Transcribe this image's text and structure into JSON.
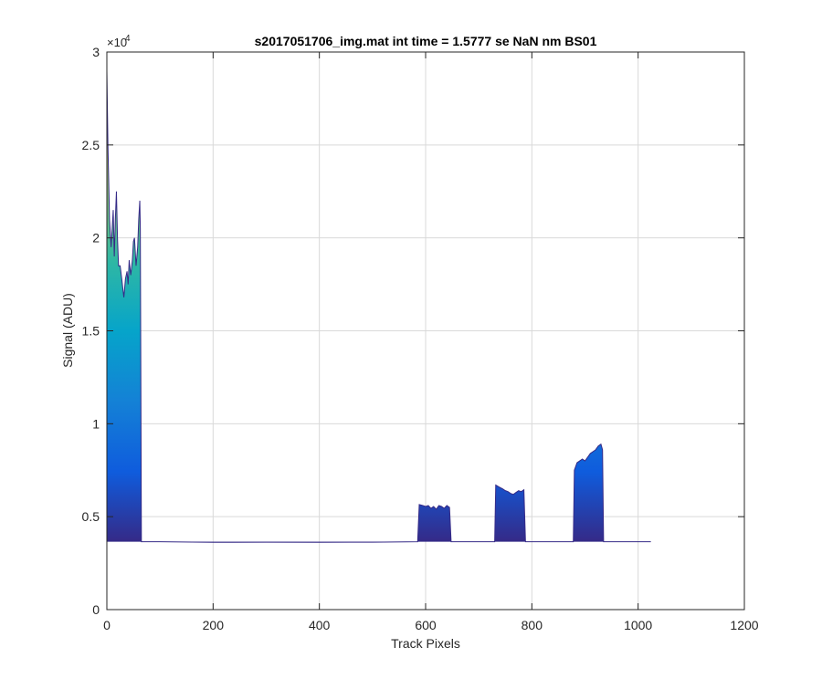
{
  "chart_data": {
    "type": "area",
    "title": "s2017051706_img.mat int time = 1.5777 se  NaN nm BS01",
    "xlabel": "Track Pixels",
    "ylabel": "Signal (ADU)",
    "xlim": [
      0,
      1200
    ],
    "ylim": [
      0,
      30000
    ],
    "grid": true,
    "y_exponent_label": "×10",
    "y_exponent_power": "4",
    "x_ticks": [
      0,
      200,
      400,
      600,
      800,
      1000,
      1200
    ],
    "x_tick_labels": [
      "0",
      "200",
      "400",
      "600",
      "800",
      "1000",
      "1200"
    ],
    "y_ticks": [
      0,
      5000,
      10000,
      15000,
      20000,
      25000,
      30000
    ],
    "y_tick_labels": [
      "0",
      "0.5",
      "1",
      "1.5",
      "2",
      "2.5",
      "3"
    ],
    "baseline": 3650,
    "colormap": [
      "#352a87",
      "#0f5cdd",
      "#1481d6",
      "#06a4ca",
      "#2eb7a4",
      "#87bf77",
      "#d1bb59",
      "#fed82f"
    ],
    "series": [
      {
        "values": [
          [
            0,
            29000
          ],
          [
            2,
            25000
          ],
          [
            5,
            21000
          ],
          [
            8,
            19500
          ],
          [
            10,
            20500
          ],
          [
            12,
            21500
          ],
          [
            14,
            19000
          ],
          [
            16,
            21000
          ],
          [
            18,
            22500
          ],
          [
            20,
            20000
          ],
          [
            22,
            18500
          ],
          [
            25,
            18500
          ],
          [
            28,
            17800
          ],
          [
            30,
            17300
          ],
          [
            32,
            16800
          ],
          [
            35,
            17800
          ],
          [
            38,
            18200
          ],
          [
            40,
            17500
          ],
          [
            42,
            18800
          ],
          [
            45,
            18000
          ],
          [
            48,
            18800
          ],
          [
            50,
            19800
          ],
          [
            52,
            20000
          ],
          [
            55,
            18500
          ],
          [
            58,
            19500
          ],
          [
            60,
            21000
          ],
          [
            62,
            22000
          ],
          [
            63,
            20500
          ],
          [
            65,
            3650
          ],
          [
            70,
            3650
          ],
          [
            100,
            3650
          ],
          [
            200,
            3620
          ],
          [
            300,
            3630
          ],
          [
            400,
            3620
          ],
          [
            500,
            3630
          ],
          [
            585,
            3650
          ],
          [
            588,
            5650
          ],
          [
            595,
            5600
          ],
          [
            600,
            5550
          ],
          [
            605,
            5600
          ],
          [
            610,
            5450
          ],
          [
            615,
            5550
          ],
          [
            620,
            5400
          ],
          [
            625,
            5600
          ],
          [
            630,
            5550
          ],
          [
            635,
            5450
          ],
          [
            640,
            5600
          ],
          [
            645,
            5500
          ],
          [
            648,
            3650
          ],
          [
            700,
            3650
          ],
          [
            730,
            3650
          ],
          [
            732,
            6700
          ],
          [
            738,
            6600
          ],
          [
            745,
            6500
          ],
          [
            750,
            6400
          ],
          [
            755,
            6350
          ],
          [
            760,
            6250
          ],
          [
            765,
            6200
          ],
          [
            770,
            6300
          ],
          [
            775,
            6400
          ],
          [
            780,
            6350
          ],
          [
            785,
            6450
          ],
          [
            788,
            3650
          ],
          [
            850,
            3650
          ],
          [
            878,
            3650
          ],
          [
            880,
            7500
          ],
          [
            885,
            7900
          ],
          [
            890,
            8000
          ],
          [
            895,
            8100
          ],
          [
            900,
            8000
          ],
          [
            905,
            8200
          ],
          [
            910,
            8400
          ],
          [
            915,
            8500
          ],
          [
            920,
            8600
          ],
          [
            925,
            8800
          ],
          [
            930,
            8900
          ],
          [
            933,
            8600
          ],
          [
            935,
            3650
          ],
          [
            1000,
            3650
          ],
          [
            1024,
            3650
          ]
        ]
      }
    ]
  }
}
